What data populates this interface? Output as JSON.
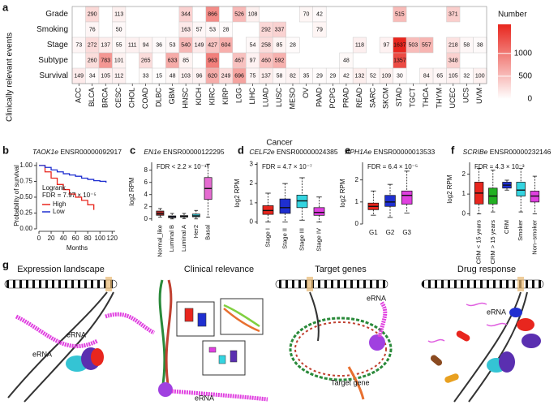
{
  "panel_labels": [
    "a",
    "b",
    "c",
    "d",
    "e",
    "f",
    "g"
  ],
  "chart_data": [
    {
      "type": "heatmap",
      "y_label": "Clinically relevant events",
      "x_label": "Cancer",
      "rows": [
        "Grade",
        "Smoking",
        "Stage",
        "Subtype",
        "Survival"
      ],
      "columns": [
        "ACC",
        "BLCA",
        "BRCA",
        "CESC",
        "CHOL",
        "COAD",
        "DLBC",
        "GBM",
        "HNSC",
        "KICH",
        "KIRC",
        "KIRP",
        "LGG",
        "LIHC",
        "LUAD",
        "LUSC",
        "MESO",
        "OV",
        "PAAD",
        "PCPG",
        "PRAD",
        "READ",
        "SARC",
        "SKCM",
        "STAD",
        "TGCT",
        "THCA",
        "THYM",
        "UCEC",
        "UCS",
        "UVM"
      ],
      "matrix": [
        [
          null,
          290,
          null,
          113,
          null,
          null,
          null,
          null,
          344,
          null,
          866,
          null,
          526,
          108,
          null,
          null,
          null,
          70,
          42,
          null,
          null,
          null,
          null,
          null,
          515,
          null,
          null,
          null,
          371,
          null,
          null
        ],
        [
          null,
          76,
          null,
          50,
          null,
          null,
          null,
          null,
          163,
          57,
          53,
          28,
          null,
          null,
          292,
          337,
          null,
          null,
          79,
          null,
          null,
          null,
          null,
          null,
          null,
          null,
          null,
          null,
          null,
          null,
          null
        ],
        [
          73,
          272,
          137,
          55,
          111,
          94,
          36,
          53,
          540,
          149,
          427,
          604,
          null,
          54,
          258,
          85,
          28,
          null,
          null,
          null,
          null,
          118,
          null,
          97,
          1637,
          503,
          557,
          null,
          218,
          58,
          38
        ],
        [
          null,
          260,
          783,
          101,
          null,
          265,
          null,
          633,
          85,
          null,
          963,
          null,
          467,
          97,
          460,
          592,
          null,
          null,
          null,
          null,
          48,
          null,
          null,
          null,
          1357,
          null,
          null,
          null,
          348,
          null,
          null
        ],
        [
          149,
          34,
          105,
          112,
          null,
          33,
          15,
          48,
          103,
          96,
          620,
          249,
          696,
          75,
          137,
          58,
          82,
          35,
          29,
          29,
          42,
          132,
          52,
          109,
          30,
          null,
          84,
          65,
          105,
          32,
          100
        ]
      ],
      "colorbar_title": "Number",
      "clim": [
        0,
        1637
      ],
      "colorbar_ticks": [
        0,
        500,
        1000
      ],
      "colors": [
        "#ffffff",
        "#e8261e"
      ]
    },
    {
      "type": "km",
      "gene": "TAOK1e",
      "id": "ENSR00000092917",
      "x_label": "Months",
      "y_label": "Probability of survival",
      "annotation": [
        "Logrank",
        "FDR = 7.97 × 10⁻⁵"
      ],
      "x": [
        0,
        10,
        20,
        30,
        40,
        50,
        60,
        70,
        80,
        90,
        100,
        110,
        120
      ],
      "series": [
        {
          "name": "High",
          "color": "#e8261e",
          "values": [
            1,
            0.9,
            0.8,
            0.7,
            0.62,
            0.55,
            0.5,
            0.45,
            0.38,
            0.3,
            null,
            null,
            null
          ]
        },
        {
          "name": "Low",
          "color": "#1f2fd0",
          "values": [
            1,
            0.97,
            0.93,
            0.9,
            0.87,
            0.85,
            0.83,
            0.8,
            0.78,
            0.76,
            0.75,
            0.73,
            null
          ]
        }
      ],
      "xlim": [
        0,
        125
      ],
      "xticks": [
        0,
        20,
        40,
        60,
        80,
        100,
        120
      ],
      "ylim": [
        0,
        1.05
      ],
      "yticks": [
        {
          "value": 0,
          "label": "0.00"
        },
        {
          "value": 0.25,
          "label": "0.25"
        },
        {
          "value": 0.5,
          "label": "0.50"
        },
        {
          "value": 0.75,
          "label": "0.75"
        },
        {
          "value": 1,
          "label": "1.00"
        }
      ]
    },
    {
      "type": "box",
      "gene": "EN1e",
      "id": "ENSR00000122295",
      "y_label": "log2 RPM",
      "annotation": "FDR < 2.2 × 10⁻¹⁶",
      "categories": [
        "Normal_like",
        "Luminal B",
        "Luminal A",
        "Her2",
        "Basal"
      ],
      "colors": [
        "#a52a2a",
        "#3b3f9a",
        "#6d7fa8",
        "#34c4d4",
        "#e56bd1"
      ],
      "min": [
        0.3,
        0,
        0.05,
        0,
        0.3
      ],
      "q1": [
        0.6,
        0.2,
        0.3,
        0.35,
        3.2
      ],
      "median": [
        0.85,
        0.35,
        0.4,
        0.5,
        5
      ],
      "q3": [
        1.3,
        0.5,
        0.55,
        0.8,
        6.8
      ],
      "max": [
        1.7,
        0.9,
        0.9,
        1.4,
        9
      ],
      "ylim": [
        -0.3,
        9.3
      ],
      "yticks": [
        0,
        2,
        4,
        6,
        8
      ]
    },
    {
      "type": "box",
      "gene": "CELF2e",
      "id": "ENSR00000024385",
      "y_label": "log2 RPM",
      "annotation": "FDR = 4.7 × 10⁻⁷",
      "categories": [
        "Stage I",
        "Stage II",
        "Stage III",
        "Stage IV"
      ],
      "colors": [
        "#e8261e",
        "#1f2fd0",
        "#34d4e0",
        "#e040e0"
      ],
      "min": [
        0,
        0,
        0.1,
        0
      ],
      "q1": [
        0.4,
        0.45,
        0.75,
        0.35
      ],
      "median": [
        0.6,
        0.75,
        1.1,
        0.5
      ],
      "q3": [
        0.85,
        1.2,
        1.4,
        0.75
      ],
      "max": [
        1.5,
        2,
        2.3,
        1.3
      ],
      "ylim": [
        -0.1,
        3.1
      ],
      "yticks": [
        0,
        1,
        2,
        3
      ]
    },
    {
      "type": "box",
      "gene": "APH1Ae",
      "id": "ENSR00000013533",
      "y_label": "log2 RPM",
      "annotation": "FDR = 6.4 × 10⁻⁵",
      "categories": [
        "G1",
        "G2",
        "G3"
      ],
      "colors": [
        "#e8261e",
        "#1f2fd0",
        "#e040e0"
      ],
      "min": [
        0.4,
        0.3,
        0.5
      ],
      "q1": [
        0.65,
        0.8,
        0.9
      ],
      "median": [
        0.8,
        1,
        1.3
      ],
      "q3": [
        0.95,
        1.3,
        1.5
      ],
      "max": [
        1.5,
        1.8,
        2.4
      ],
      "ylim": [
        0,
        2.8
      ],
      "yticks": [
        0,
        1,
        2
      ]
    },
    {
      "type": "box",
      "gene": "SCRIBe",
      "id": "ENSR00000232146",
      "y_label": "log2 RPM",
      "annotation": "FDR = 4.3 × 10⁻³",
      "categories": [
        "CRM < 15 years",
        "CRM > 15 years",
        "CRM",
        "Smoker",
        "Non−smoker"
      ],
      "colors": [
        "#e8261e",
        "#22b022",
        "#1f2fd0",
        "#34d4e0",
        "#e040e0"
      ],
      "min": [
        0,
        0.1,
        1.2,
        0.1,
        0
      ],
      "q1": [
        0.5,
        0.5,
        1.3,
        0.9,
        0.6
      ],
      "median": [
        1.05,
        0.9,
        1.45,
        1.2,
        0.9
      ],
      "q3": [
        1.6,
        1.3,
        1.6,
        1.6,
        1.15
      ],
      "max": [
        2.3,
        2.2,
        1.7,
        2.3,
        1.9
      ],
      "ylim": [
        -0.1,
        2.6
      ],
      "yticks": [
        0,
        1,
        2
      ]
    }
  ],
  "panel_g": {
    "titles": [
      "Expression landscape",
      "Clinical relevance",
      "Target genes",
      "Drug response"
    ],
    "labels": [
      "eRNA",
      "eRNA",
      "eRNA",
      "eRNA",
      "Target gene"
    ]
  }
}
